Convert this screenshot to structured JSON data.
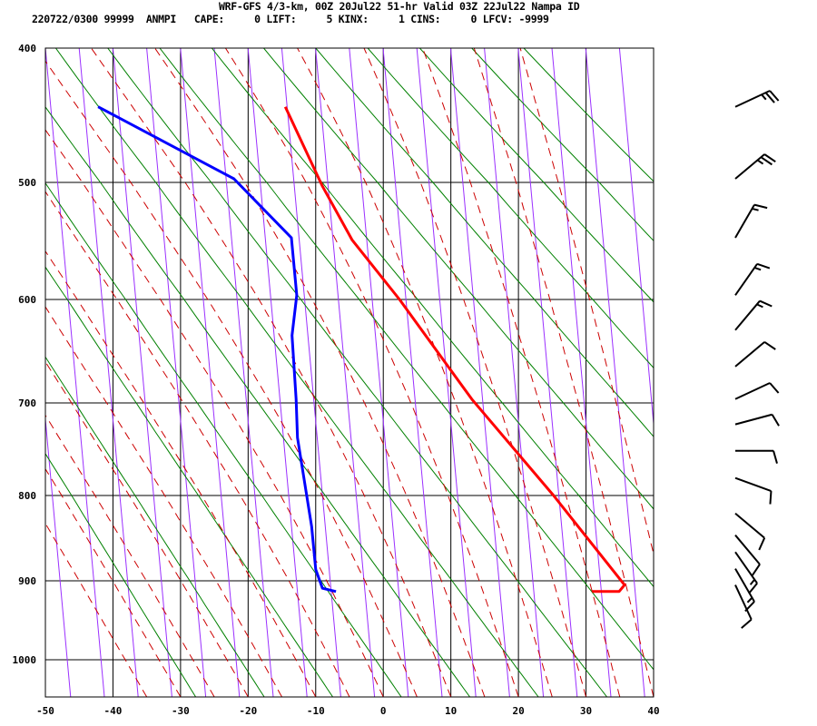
{
  "header": {
    "title": "WRF-GFS 4/3-km, 00Z 20Jul22 51-hr Valid 03Z 22Jul22 Nampa ID",
    "info": "220722/0300 99999  ANMPI   CAPE:     0 LIFT:     5 KINX:     1 CINS:     0 LFCV: -9999"
  },
  "chart_data": {
    "type": "line",
    "title": "WRF-GFS 4/3-km, 00Z 20Jul22 51-hr Valid 03Z 22Jul22 Nampa ID",
    "xlim": [
      -50,
      40
    ],
    "ylim_pressure": [
      1050,
      400
    ],
    "x_ticks": [
      -50,
      -40,
      -30,
      -20,
      -10,
      0,
      10,
      20,
      30,
      40
    ],
    "y_ticks": [
      400,
      500,
      600,
      700,
      800,
      900,
      1000
    ],
    "y_scale": "log-pressure",
    "grid": true,
    "colors": {
      "temperature": "#ff0000",
      "dewpoint": "#0000ff",
      "dry_adiabat": "#008000",
      "moist_adiabat": "#cc0000",
      "mixing_ratio": "#9b30ff",
      "grid": "#000000",
      "barb": "#000000"
    },
    "temperature": [
      [
        441,
        -14.5
      ],
      [
        503,
        -9.0
      ],
      [
        547,
        -4.6
      ],
      [
        600,
        2.4
      ],
      [
        696,
        13.1
      ],
      [
        800,
        25.2
      ],
      [
        905,
        35.7
      ],
      [
        913,
        34.9
      ],
      [
        913,
        30.9
      ]
    ],
    "dewpoint": [
      [
        441,
        -42.2
      ],
      [
        497,
        -22.1
      ],
      [
        545,
        -13.6
      ],
      [
        596,
        -12.8
      ],
      [
        633,
        -13.5
      ],
      [
        696,
        -12.9
      ],
      [
        736,
        -12.7
      ],
      [
        835,
        -10.6
      ],
      [
        886,
        -10.0
      ],
      [
        909,
        -9.0
      ],
      [
        913,
        -7.0
      ]
    ],
    "wind_barbs": [
      [
        441,
        245,
        25
      ],
      [
        497,
        230,
        25
      ],
      [
        545,
        210,
        15
      ],
      [
        596,
        215,
        15
      ],
      [
        628,
        220,
        15
      ],
      [
        663,
        230,
        10
      ],
      [
        696,
        245,
        10
      ],
      [
        722,
        255,
        10
      ],
      [
        750,
        270,
        10
      ],
      [
        780,
        290,
        10
      ],
      [
        820,
        310,
        10
      ],
      [
        845,
        320,
        10
      ],
      [
        865,
        325,
        15
      ],
      [
        885,
        330,
        15
      ],
      [
        905,
        335,
        10
      ]
    ]
  }
}
